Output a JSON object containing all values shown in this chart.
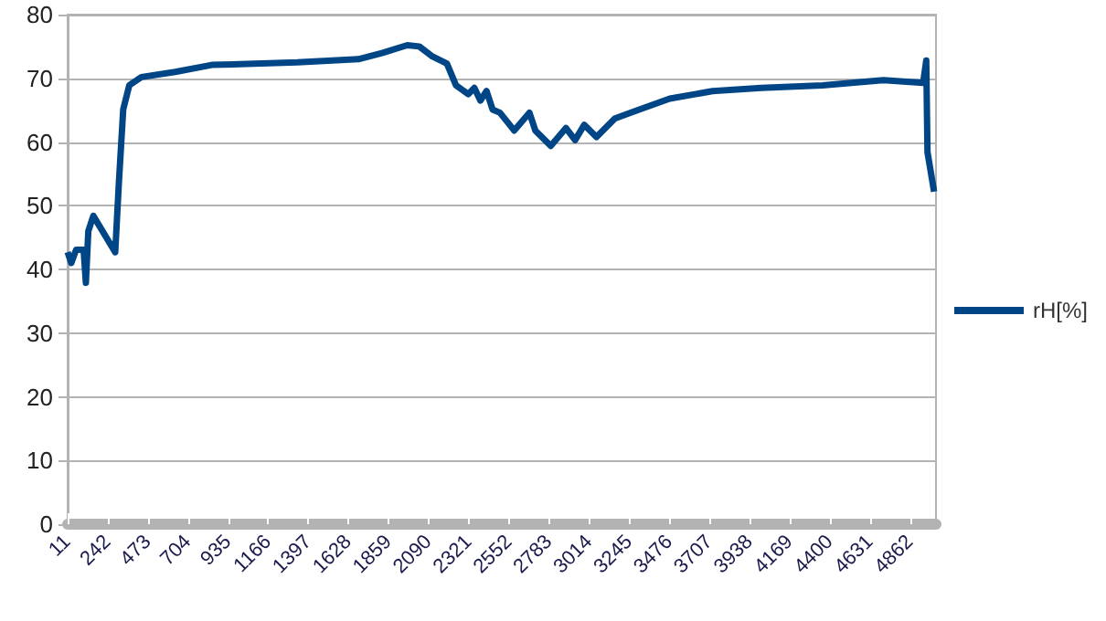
{
  "chart_data": {
    "type": "line",
    "legend": "right",
    "grid": "y",
    "marker": "none",
    "line_style": "solid",
    "xlim": [
      11,
      5011
    ],
    "xticks": [
      11,
      242,
      473,
      704,
      935,
      1166,
      1397,
      1628,
      1859,
      2090,
      2321,
      2552,
      2783,
      3014,
      3245,
      3476,
      3707,
      3938,
      4169,
      4400,
      4631,
      4862
    ],
    "ylim": [
      0,
      80
    ],
    "yticks": [
      0,
      10,
      20,
      30,
      40,
      50,
      60,
      70,
      80
    ],
    "series": [
      {
        "name": "rH[%]",
        "color": "#004586",
        "x": [
          11,
          32,
          60,
          103,
          116,
          130,
          159,
          201,
          285,
          306,
          331,
          366,
          436,
          630,
          841,
          1333,
          1685,
          1825,
          1966,
          2036,
          2107,
          2195,
          2247,
          2318,
          2353,
          2388,
          2423,
          2458,
          2500,
          2556,
          2582,
          2670,
          2704,
          2793,
          2880,
          2933,
          2986,
          3056,
          3162,
          3302,
          3478,
          3724,
          4006,
          4357,
          4708,
          4937,
          4955,
          4962,
          5000
        ],
        "values": [
          42.7,
          41.0,
          43.1,
          43.1,
          37.9,
          46.0,
          48.4,
          46.5,
          42.7,
          53.6,
          65.1,
          68.9,
          70.2,
          71.0,
          72.1,
          72.5,
          73.0,
          74.0,
          75.2,
          75.0,
          73.5,
          72.3,
          68.9,
          67.5,
          68.5,
          66.5,
          68.0,
          65.1,
          64.6,
          62.7,
          61.8,
          64.6,
          61.8,
          59.4,
          62.2,
          60.3,
          62.7,
          60.8,
          63.7,
          65.1,
          66.8,
          68.0,
          68.5,
          68.9,
          69.7,
          69.3,
          72.8,
          58.4,
          52.2
        ]
      }
    ]
  }
}
